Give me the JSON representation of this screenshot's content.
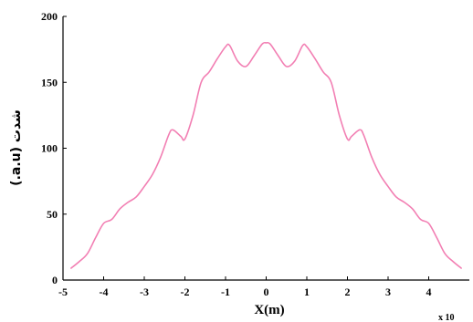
{
  "chart_data": {
    "type": "line",
    "xlabel": "X(m)",
    "ylabel": "شدت  (a.u.)",
    "x_exponent_label": "x 10",
    "xlim": [
      -5,
      5
    ],
    "ylim": [
      0,
      200
    ],
    "xticks": [
      -5,
      -4,
      -3,
      -2,
      -1,
      0,
      1,
      2,
      3,
      4
    ],
    "yticks": [
      0,
      50,
      100,
      150,
      200
    ],
    "grid": false,
    "line_color": "#f27fb3",
    "series": [
      {
        "x": [
          -4.8,
          -4.6,
          -4.4,
          -4.2,
          -4.0,
          -3.8,
          -3.6,
          -3.4,
          -3.2,
          -3.0,
          -2.8,
          -2.6,
          -2.4,
          -2.3,
          -2.1,
          -2.0,
          -1.8,
          -1.6,
          -1.4,
          -1.2,
          -1.0,
          -0.9,
          -0.7,
          -0.5,
          -0.3,
          -0.1,
          0.0,
          0.1,
          0.3,
          0.5,
          0.7,
          0.9,
          1.0,
          1.2,
          1.4,
          1.6,
          1.8,
          2.0,
          2.1,
          2.3,
          2.4,
          2.6,
          2.8,
          3.0,
          3.2,
          3.4,
          3.6,
          3.8,
          4.0,
          4.2,
          4.4,
          4.6,
          4.8
        ],
        "y": [
          9,
          14,
          20,
          32,
          43,
          46,
          54,
          59,
          63,
          71,
          80,
          93,
          110,
          114,
          109,
          107,
          125,
          150,
          158,
          168,
          177,
          178,
          166,
          162,
          170,
          179,
          180,
          179,
          170,
          162,
          166,
          178,
          177,
          168,
          158,
          150,
          125,
          107,
          109,
          114,
          110,
          93,
          80,
          71,
          63,
          59,
          54,
          46,
          43,
          32,
          20,
          14,
          9
        ]
      }
    ]
  }
}
